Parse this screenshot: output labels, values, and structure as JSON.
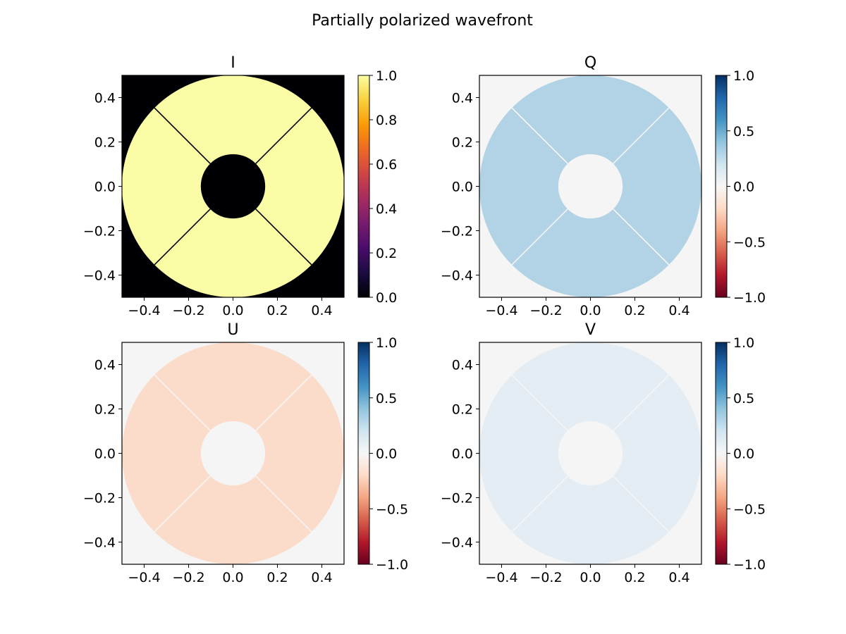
{
  "chart_data": {
    "type": "heatmap",
    "title": "Partially polarized wavefront",
    "shape": "annular aperture, central obscuration, 4 diagonal spider vanes",
    "x_range": [
      -0.5,
      0.5
    ],
    "y_range": [
      -0.5,
      0.5
    ],
    "outer_radius": 0.5,
    "inner_radius": 0.145,
    "spider_angles_deg": [
      45,
      135,
      225,
      315
    ],
    "panels": [
      {
        "title": "I",
        "colormap": "inferno",
        "aperture_value": 1.0,
        "background_value": 0.0,
        "clim": [
          0.0,
          1.0
        ],
        "cbar_ticks": [
          0.0,
          0.2,
          0.4,
          0.6,
          0.8,
          1.0
        ],
        "cbar_labels": [
          "0.0",
          "0.2",
          "0.4",
          "0.6",
          "0.8",
          "1.0"
        ],
        "aperture_color": "#fafca6",
        "background_color": "#000004",
        "spider_color": "#000004",
        "cbar_stops": [
          "#000004",
          "#1b0c41",
          "#4a0c6b",
          "#781c6d",
          "#a52c60",
          "#cf4446",
          "#ed6925",
          "#fb9b06",
          "#f7d13d",
          "#fcffa4"
        ]
      },
      {
        "title": "Q",
        "colormap": "RdBu",
        "aperture_value": 0.3,
        "background_value": 0.0,
        "clim": [
          -1.0,
          1.0
        ],
        "cbar_ticks": [
          -1.0,
          -0.5,
          0.0,
          0.5,
          1.0
        ],
        "cbar_labels": [
          "−1.0",
          "−0.5",
          "0.0",
          "0.5",
          "1.0"
        ],
        "aperture_color": "#b2d3e6",
        "background_color": "#f5f5f5",
        "spider_color": "#f5f5f5",
        "cbar_stops": [
          "#67001f",
          "#b2182b",
          "#d6604d",
          "#f4a582",
          "#fddbc7",
          "#f7f7f7",
          "#d1e5f0",
          "#92c5de",
          "#4393c3",
          "#2166ac",
          "#053061"
        ]
      },
      {
        "title": "U",
        "colormap": "RdBu",
        "aperture_value": -0.15,
        "background_value": 0.0,
        "clim": [
          -1.0,
          1.0
        ],
        "cbar_ticks": [
          -1.0,
          -0.5,
          0.0,
          0.5,
          1.0
        ],
        "cbar_labels": [
          "−1.0",
          "−0.5",
          "0.0",
          "0.5",
          "1.0"
        ],
        "aperture_color": "#fbdbc9",
        "background_color": "#f5f5f5",
        "spider_color": "#f5f5f5",
        "cbar_stops": [
          "#67001f",
          "#b2182b",
          "#d6604d",
          "#f4a582",
          "#fddbc7",
          "#f7f7f7",
          "#d1e5f0",
          "#92c5de",
          "#4393c3",
          "#2166ac",
          "#053061"
        ]
      },
      {
        "title": "V",
        "colormap": "RdBu",
        "aperture_value": 0.07,
        "background_value": 0.0,
        "clim": [
          -1.0,
          1.0
        ],
        "cbar_ticks": [
          -1.0,
          -0.5,
          0.0,
          0.5,
          1.0
        ],
        "cbar_labels": [
          "−1.0",
          "−0.5",
          "0.0",
          "0.5",
          "1.0"
        ],
        "aperture_color": "#e4edf3",
        "background_color": "#f5f5f5",
        "spider_color": "#f5f5f5",
        "cbar_stops": [
          "#67001f",
          "#b2182b",
          "#d6604d",
          "#f4a582",
          "#fddbc7",
          "#f7f7f7",
          "#d1e5f0",
          "#92c5de",
          "#4393c3",
          "#2166ac",
          "#053061"
        ]
      }
    ],
    "x_ticks": [
      -0.4,
      -0.2,
      0.0,
      0.2,
      0.4
    ],
    "x_tick_labels": [
      "−0.4",
      "−0.2",
      "0.0",
      "0.2",
      "0.4"
    ],
    "y_ticks": [
      0.4,
      0.2,
      0.0,
      -0.2,
      -0.4
    ],
    "y_tick_labels": [
      "0.4",
      "0.2",
      "0.0",
      "−0.2",
      "−0.4"
    ]
  }
}
